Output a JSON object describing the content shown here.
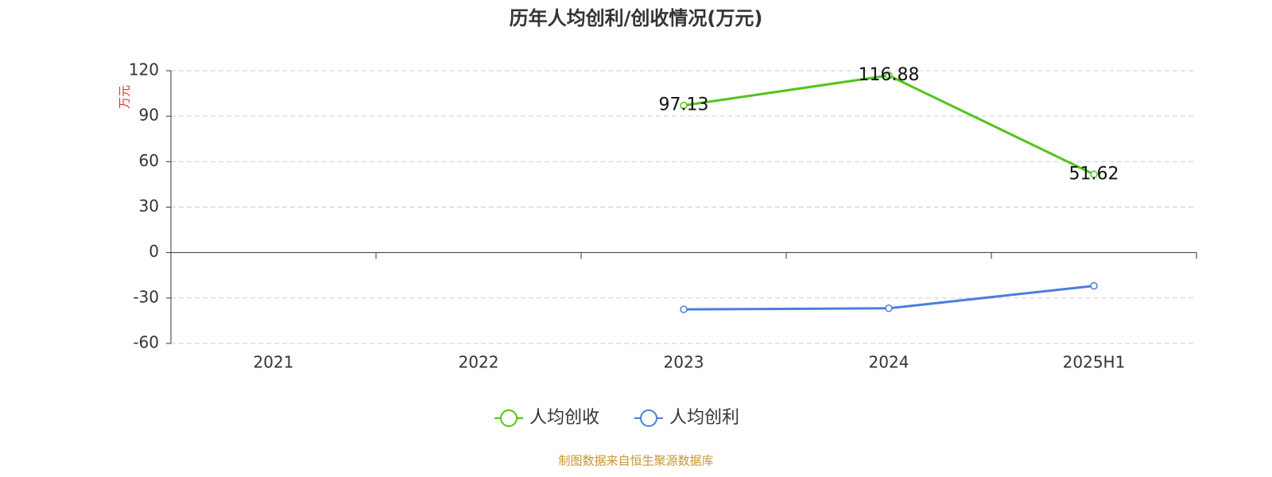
{
  "chart_data": {
    "type": "line",
    "title": "历年人均创利/创收情况(万元)",
    "y_label": "万元",
    "categories": [
      "2021",
      "2022",
      "2023",
      "2024",
      "2025H1"
    ],
    "series": [
      {
        "name": "人均创收",
        "color": "#52c41a",
        "values": [
          null,
          null,
          97.13,
          116.88,
          51.62
        ],
        "show_labels": true
      },
      {
        "name": "人均创利",
        "color": "#4a7fdc",
        "values": [
          null,
          null,
          -37.5,
          -36.8,
          -22.0
        ],
        "show_labels": false
      }
    ],
    "ylim": [
      -60,
      120
    ],
    "yticks": [
      -60,
      -30,
      0,
      30,
      60,
      90,
      120
    ],
    "grid": true,
    "legend": "bottom",
    "source": "制图数据来自恒生聚源数据库"
  }
}
